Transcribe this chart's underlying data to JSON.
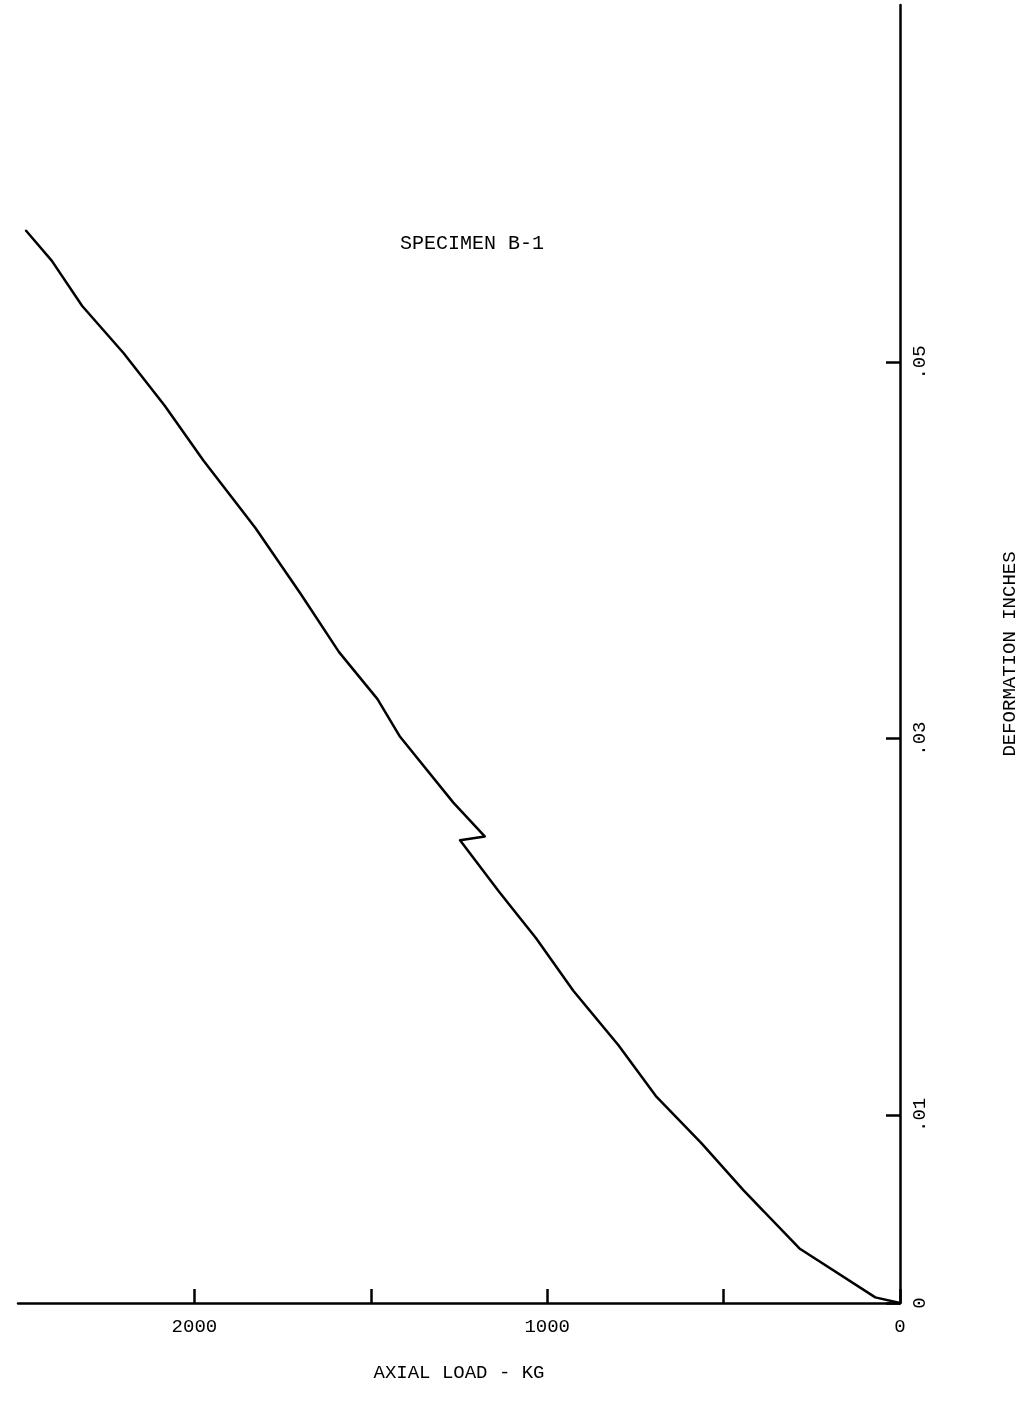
{
  "chart_data": {
    "type": "line",
    "title": "SPECIMEN B-1",
    "xlabel": "AXIAL LOAD - KG",
    "ylabel": "DEFORMATION INCHES",
    "xlim": [
      2500,
      0
    ],
    "xticks": [
      2000,
      {
        "value": 1500,
        "label": null
      },
      1000,
      {
        "value": 500,
        "label": null
      },
      0
    ],
    "ylim": [
      0,
      0.069
    ],
    "yticks": [
      0,
      {
        "value": 0.01,
        "label": ".01"
      },
      {
        "value": 0.03,
        "label": ".03"
      },
      {
        "value": 0.05,
        "label": ".05"
      }
    ],
    "grid": false,
    "marker": "none",
    "line_style": "solid",
    "series": [
      {
        "color": "#000000",
        "x": [
          0,
          70,
          285,
          444,
          563,
          692,
          798,
          926,
          1032,
          1138,
          1247,
          1177,
          1266,
          1417,
          1481,
          1590,
          1699,
          1827,
          1975,
          2084,
          2201,
          2318,
          2404,
          2477
        ],
        "values": [
          0,
          0.0003,
          0.0029,
          0.006,
          0.0085,
          0.011,
          0.0137,
          0.0166,
          0.0194,
          0.0219,
          0.0246,
          0.0248,
          0.0266,
          0.0301,
          0.0321,
          0.0346,
          0.0377,
          0.0412,
          0.0448,
          0.0477,
          0.0505,
          0.053,
          0.0554,
          0.057
        ]
      }
    ]
  }
}
